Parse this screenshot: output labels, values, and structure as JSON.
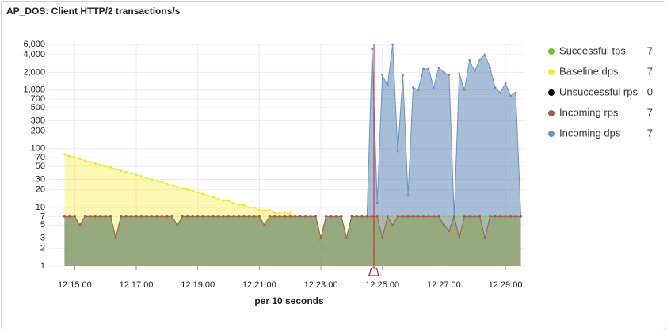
{
  "chart_data": {
    "type": "line",
    "title": "AP_DOS: Client HTTP/2 transactions/s",
    "x_label": "per 10 seconds",
    "log_scale": true,
    "grid": true,
    "legend_position": "right",
    "x": [
      "12:14:40",
      "12:14:50",
      "12:15:00",
      "12:15:10",
      "12:15:20",
      "12:15:30",
      "12:15:40",
      "12:15:50",
      "12:16:00",
      "12:16:10",
      "12:16:20",
      "12:16:30",
      "12:16:40",
      "12:16:50",
      "12:17:00",
      "12:17:10",
      "12:17:20",
      "12:17:30",
      "12:17:40",
      "12:17:50",
      "12:18:00",
      "12:18:10",
      "12:18:20",
      "12:18:30",
      "12:18:40",
      "12:18:50",
      "12:19:00",
      "12:19:10",
      "12:19:20",
      "12:19:30",
      "12:19:40",
      "12:19:50",
      "12:20:00",
      "12:20:10",
      "12:20:20",
      "12:20:30",
      "12:20:40",
      "12:20:50",
      "12:21:00",
      "12:21:10",
      "12:21:20",
      "12:21:30",
      "12:21:40",
      "12:21:50",
      "12:22:00",
      "12:22:10",
      "12:22:20",
      "12:22:30",
      "12:22:40",
      "12:22:50",
      "12:23:00",
      "12:23:10",
      "12:23:20",
      "12:23:30",
      "12:23:40",
      "12:23:50",
      "12:24:00",
      "12:24:10",
      "12:24:20",
      "12:24:30",
      "12:24:40",
      "12:24:50",
      "12:25:00",
      "12:25:10",
      "12:25:20",
      "12:25:30",
      "12:25:40",
      "12:25:50",
      "12:26:00",
      "12:26:10",
      "12:26:20",
      "12:26:30",
      "12:26:40",
      "12:26:50",
      "12:27:00",
      "12:27:10",
      "12:27:20",
      "12:27:30",
      "12:27:40",
      "12:27:50",
      "12:28:00",
      "12:28:10",
      "12:28:20",
      "12:28:30",
      "12:28:40",
      "12:28:50",
      "12:29:00",
      "12:29:10",
      "12:29:20",
      "12:29:30"
    ],
    "xlim": [
      "12:14:10",
      "12:29:37"
    ],
    "xticks": [
      "12:15:00",
      "12:17:00",
      "12:19:00",
      "12:21:00",
      "12:23:00",
      "12:25:00",
      "12:27:00",
      "12:29:00"
    ],
    "ylim": [
      1,
      6000
    ],
    "yticks": [
      1,
      2,
      3,
      5,
      7,
      10,
      20,
      30,
      50,
      70,
      100,
      200,
      300,
      500,
      700,
      {
        "value": 1000,
        "label": "1,000"
      },
      {
        "value": 2000,
        "label": "2,000"
      },
      {
        "value": 4000,
        "label": "4,000"
      },
      {
        "value": 6000,
        "label": "6,000"
      }
    ],
    "series": [
      {
        "name": "Successful tps",
        "color": "#73bf2f",
        "legend_value": 7,
        "values": [
          7,
          7,
          7,
          5,
          7,
          7,
          7,
          7,
          7,
          7,
          3,
          7,
          7,
          7,
          7,
          7,
          7,
          7,
          7,
          7,
          7,
          7,
          5,
          7,
          7,
          7,
          7,
          7,
          7,
          7,
          7,
          7,
          7,
          7,
          7,
          7,
          7,
          7,
          7,
          5,
          7,
          7,
          7,
          7,
          7,
          7,
          7,
          7,
          7,
          7,
          3,
          7,
          7,
          7,
          7,
          3,
          7,
          7,
          7,
          7,
          7,
          7,
          3,
          7,
          5,
          7,
          7,
          7,
          7,
          7,
          7,
          7,
          7,
          7,
          5,
          4,
          7,
          3,
          7,
          7,
          7,
          7,
          3,
          7,
          7,
          7,
          7,
          7,
          7,
          7
        ]
      },
      {
        "name": "Baseline dps",
        "color": "#f2ec1f",
        "legend_value": 7,
        "values": [
          80,
          75,
          71,
          67,
          63,
          60,
          56,
          53,
          50,
          48,
          45,
          42,
          40,
          38,
          36,
          34,
          32,
          30,
          28,
          27,
          25,
          24,
          22,
          21,
          20,
          19,
          18,
          17,
          16,
          15,
          14,
          13,
          13,
          12,
          11,
          11,
          10,
          10,
          9,
          9,
          9,
          8,
          8,
          8,
          8,
          7,
          7,
          7,
          7,
          7,
          2,
          7,
          7,
          7,
          7,
          3,
          7,
          7,
          7,
          7,
          7,
          7,
          7,
          7,
          7,
          7,
          7,
          7,
          7,
          7,
          7,
          7,
          7,
          7,
          7,
          7,
          7,
          7,
          7,
          7,
          7,
          7,
          7,
          7,
          7,
          7,
          7,
          7,
          7,
          7
        ]
      },
      {
        "name": "Unsuccessful rps",
        "color": "#000000",
        "legend_value": 0
      },
      {
        "name": "Incoming rps",
        "color": "#a3604f",
        "legend_value": 7,
        "values": [
          7,
          7,
          7,
          5,
          7,
          7,
          7,
          7,
          7,
          7,
          3,
          7,
          7,
          7,
          7,
          7,
          7,
          7,
          7,
          7,
          7,
          7,
          5,
          7,
          7,
          7,
          7,
          7,
          7,
          7,
          7,
          7,
          7,
          7,
          7,
          7,
          7,
          7,
          7,
          5,
          7,
          7,
          7,
          7,
          7,
          7,
          7,
          7,
          7,
          7,
          3,
          7,
          7,
          7,
          7,
          3,
          7,
          7,
          7,
          7,
          7,
          7,
          3,
          7,
          5,
          7,
          7,
          7,
          7,
          7,
          7,
          7,
          7,
          7,
          5,
          4,
          7,
          3,
          7,
          7,
          7,
          7,
          3,
          7,
          7,
          7,
          7,
          7,
          7,
          7
        ]
      },
      {
        "name": "Incoming dps",
        "color": "#6d93c0",
        "legend_value": 7,
        "values": [
          7,
          7,
          7,
          5,
          7,
          7,
          7,
          7,
          7,
          7,
          3,
          7,
          7,
          7,
          7,
          7,
          7,
          7,
          7,
          7,
          7,
          7,
          5,
          7,
          7,
          7,
          7,
          7,
          7,
          7,
          7,
          7,
          7,
          7,
          7,
          7,
          7,
          7,
          7,
          5,
          7,
          7,
          7,
          7,
          7,
          7,
          7,
          7,
          7,
          7,
          3,
          7,
          7,
          7,
          7,
          3,
          7,
          7,
          7,
          7,
          5000,
          12,
          1800,
          1200,
          6000,
          90,
          1800,
          16,
          1100,
          1000,
          2300,
          2300,
          1100,
          2400,
          2000,
          1800,
          7,
          1900,
          1000,
          3200,
          2100,
          3300,
          4000,
          2400,
          1100,
          900,
          1300,
          800,
          900,
          7
        ]
      }
    ]
  }
}
